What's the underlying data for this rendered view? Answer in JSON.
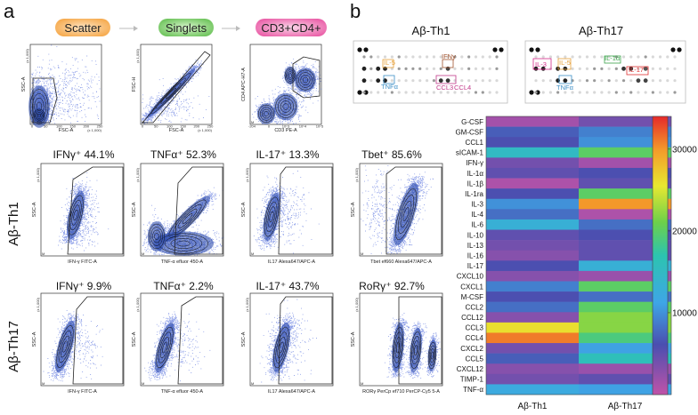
{
  "panel_a": {
    "letter": "a",
    "gating_steps": [
      {
        "label": "Scatter",
        "color": "#f6b26b"
      },
      {
        "label": "Singlets",
        "color": "#7ed36b"
      },
      {
        "label": "CD3+CD4+",
        "color": "#f07ab6"
      }
    ],
    "gating_plots": [
      {
        "ylabel": "SSC-A",
        "xlabel": "FSC-A",
        "ytick_top": "(x 1,000)",
        "xtick_unit": "(x 1,000)",
        "xticks": [
          "0",
          "50",
          "100",
          "150",
          "200",
          "250"
        ]
      },
      {
        "ylabel": "FSC-H",
        "xlabel": "FSC-A",
        "ytick_top": "(x 1,000)",
        "xtick_unit": "(x 1,000)",
        "xticks": [
          "0",
          "50",
          "100",
          "150",
          "200",
          "250"
        ]
      },
      {
        "ylabel": "CD4 APC-H7-A",
        "xlabel": "CD3 PE-A",
        "ytick_top": "",
        "xtick_unit": "",
        "xticks": [
          "-204",
          "0",
          "10^3",
          "10^4",
          "10^5"
        ]
      }
    ],
    "rows": [
      {
        "label": "Aβ-Th1",
        "plots": [
          {
            "title": "IFNγ⁺ 44.1%",
            "ylabel": "SSC-A",
            "xlabel": "IFN-γ FITC-A",
            "ytick_top": "(x 1,000)"
          },
          {
            "title": "TNFα⁺ 52.3%",
            "ylabel": "SSC-A",
            "xlabel": "TNF-α efluor 450-A",
            "ytick_top": "(x 1,000)"
          },
          {
            "title": "IL-17⁺ 13.3%",
            "ylabel": "SSC-A",
            "xlabel": "IL17 Alexa647/APC-A",
            "ytick_top": "(x 1,000)"
          },
          {
            "title": "Tbet⁺ 85.6%",
            "ylabel": "SSC-A",
            "xlabel": "Tbet ef660 Alexa647/APC-A",
            "ytick_top": "(x 1,000)"
          }
        ]
      },
      {
        "label": "Aβ-Th17",
        "plots": [
          {
            "title": "IFNγ⁺ 9.9%",
            "ylabel": "SSC-A",
            "xlabel": "IFN-γ FITC-A",
            "ytick_top": "(x 1,000)"
          },
          {
            "title": "TNFα⁺ 2.2%",
            "ylabel": "SSC-A",
            "xlabel": "TNF-α efluor 450-A",
            "ytick_top": "(x 1,000)"
          },
          {
            "title": "IL-17⁺ 43.7%",
            "ylabel": "SSC-A",
            "xlabel": "IL17 Alexa647/APC-A",
            "ytick_top": "(x 1,000)"
          },
          {
            "title": "RoRγ⁺ 92.7%",
            "ylabel": "SSC-A",
            "xlabel": "RORγ PerCp ef710 PerCP-Cy5 5-A",
            "ytick_top": "(x 1,000)"
          }
        ]
      }
    ]
  },
  "panel_b": {
    "letter": "b",
    "arrays": [
      {
        "title": "Aβ-Th1",
        "annotations": [
          {
            "text": "IL-5",
            "color": "#e6a13a"
          },
          {
            "text": "IFNγ",
            "color": "#a0522d"
          },
          {
            "text": "TNFα",
            "color": "#3d8fc6"
          },
          {
            "text": "CCL3",
            "color": "#c23a8a"
          },
          {
            "text": "CCL4",
            "color": "#c23a8a"
          }
        ]
      },
      {
        "title": "Aβ-Th17",
        "annotations": [
          {
            "text": "IL-3",
            "color": "#d62a8a"
          },
          {
            "text": "IL-5",
            "color": "#e6a13a"
          },
          {
            "text": "IL-1α",
            "color": "#3aa24a"
          },
          {
            "text": "TNFα",
            "color": "#3d8fc6"
          },
          {
            "text": "IL-17",
            "color": "#e03030"
          }
        ]
      }
    ]
  },
  "chart_data": {
    "type": "heatmap",
    "title": "",
    "columns": [
      "Aβ-Th1",
      "Aβ-Th17"
    ],
    "rows": [
      "G-CSF",
      "GM-CSF",
      "CCL1",
      "sICAM-1",
      "IFN-γ",
      "IL-1α",
      "IL-1β",
      "IL-1ra",
      "IL-3",
      "IL-4",
      "IL-6",
      "IL-10",
      "IL-13",
      "IL-16",
      "IL-17",
      "CXCL10",
      "CXCL1",
      "M-CSF",
      "CCL2",
      "CCL12",
      "CCL3",
      "CCL4",
      "CXCL2",
      "CCL5",
      "CXCL12",
      "TIMP-1",
      "TNF-α"
    ],
    "values": [
      [
        1500,
        4000
      ],
      [
        7000,
        9000
      ],
      [
        6000,
        10000
      ],
      [
        15000,
        20000
      ],
      [
        4000,
        1500
      ],
      [
        5000,
        6000
      ],
      [
        1000,
        5000
      ],
      [
        6000,
        20000
      ],
      [
        10000,
        30000
      ],
      [
        8000,
        1000
      ],
      [
        13000,
        8000
      ],
      [
        5000,
        6000
      ],
      [
        4000,
        5000
      ],
      [
        3000,
        5000
      ],
      [
        6000,
        13000
      ],
      [
        3000,
        2000
      ],
      [
        9000,
        20000
      ],
      [
        6000,
        8000
      ],
      [
        8000,
        20000
      ],
      [
        3000,
        22000
      ],
      [
        26000,
        22000
      ],
      [
        31000,
        19000
      ],
      [
        4000,
        11000
      ],
      [
        7000,
        16000
      ],
      [
        3000,
        2000
      ],
      [
        4000,
        5000
      ],
      [
        12000,
        11000
      ]
    ],
    "colorbar": {
      "min": 0,
      "max": 34000,
      "ticks": [
        "10000",
        "20000",
        "30000"
      ],
      "tick_values": [
        10000,
        20000,
        30000
      ]
    }
  }
}
